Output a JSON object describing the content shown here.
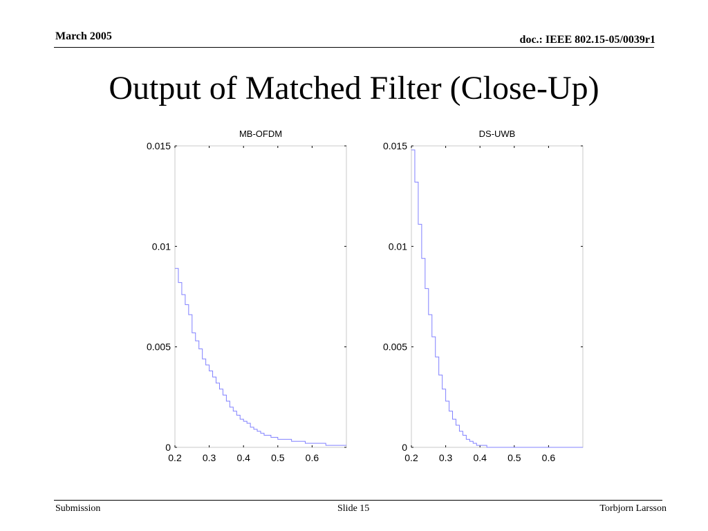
{
  "header": {
    "date": "March 2005",
    "doc_id": "doc.: IEEE 802.15-05/0039r1"
  },
  "slide_title": "Output of Matched Filter (Close-Up)",
  "footer": {
    "left": "Submission",
    "center": "Slide 15",
    "right": "Torbjorn Larsson"
  },
  "colors": {
    "series": "#8080ff",
    "axes": "#000000"
  },
  "chart_data": [
    {
      "type": "line",
      "title": "MB-OFDM",
      "xlabel": "",
      "ylabel": "",
      "xlim": [
        0.2,
        0.7
      ],
      "ylim": [
        0,
        0.015
      ],
      "xticks": [
        "0.2",
        "0.3",
        "0.4",
        "0.5",
        "0.6"
      ],
      "yticks": [
        "0",
        "0.005",
        "0.01",
        "0.015"
      ],
      "grid": false,
      "step": true,
      "series": [
        {
          "x": [
            0.2,
            0.21,
            0.22,
            0.23,
            0.24,
            0.25,
            0.26,
            0.27,
            0.28,
            0.29,
            0.3,
            0.31,
            0.32,
            0.33,
            0.34,
            0.35,
            0.36,
            0.37,
            0.38,
            0.39,
            0.4,
            0.41,
            0.42,
            0.43,
            0.44,
            0.45,
            0.46,
            0.47,
            0.48,
            0.49,
            0.5,
            0.52,
            0.54,
            0.56,
            0.58,
            0.6,
            0.62,
            0.64,
            0.66,
            0.68,
            0.7
          ],
          "values": [
            0.0089,
            0.0082,
            0.0076,
            0.0071,
            0.0066,
            0.0057,
            0.0053,
            0.0049,
            0.0044,
            0.0041,
            0.0038,
            0.0035,
            0.0032,
            0.0029,
            0.0026,
            0.0023,
            0.002,
            0.0018,
            0.0016,
            0.0014,
            0.0013,
            0.0012,
            0.001,
            0.0009,
            0.0008,
            0.0007,
            0.0006,
            0.0006,
            0.0005,
            0.0005,
            0.0004,
            0.0004,
            0.0003,
            0.0003,
            0.0002,
            0.0002,
            0.0002,
            0.0001,
            0.0001,
            0.0001,
            0.0001
          ]
        }
      ]
    },
    {
      "type": "line",
      "title": "DS-UWB",
      "xlabel": "",
      "ylabel": "",
      "xlim": [
        0.2,
        0.7
      ],
      "ylim": [
        0,
        0.015
      ],
      "xticks": [
        "0.2",
        "0.3",
        "0.4",
        "0.5",
        "0.6"
      ],
      "yticks": [
        "0",
        "0.005",
        "0.01",
        "0.015"
      ],
      "grid": false,
      "step": true,
      "series": [
        {
          "x": [
            0.2,
            0.21,
            0.22,
            0.23,
            0.24,
            0.25,
            0.26,
            0.27,
            0.28,
            0.29,
            0.3,
            0.31,
            0.32,
            0.33,
            0.34,
            0.35,
            0.36,
            0.37,
            0.38,
            0.39,
            0.4,
            0.42,
            0.44,
            0.46,
            0.48,
            0.5,
            0.55,
            0.6,
            0.65,
            0.7
          ],
          "values": [
            0.0148,
            0.0132,
            0.0111,
            0.0094,
            0.0079,
            0.0066,
            0.0055,
            0.0045,
            0.0036,
            0.0029,
            0.0023,
            0.0018,
            0.0014,
            0.0011,
            0.0008,
            0.0006,
            0.0004,
            0.0003,
            0.0002,
            0.0001,
            0.0001,
            0.0,
            0.0,
            0.0,
            0.0,
            0.0,
            0.0,
            0.0,
            0.0,
            0.0
          ]
        }
      ]
    }
  ]
}
